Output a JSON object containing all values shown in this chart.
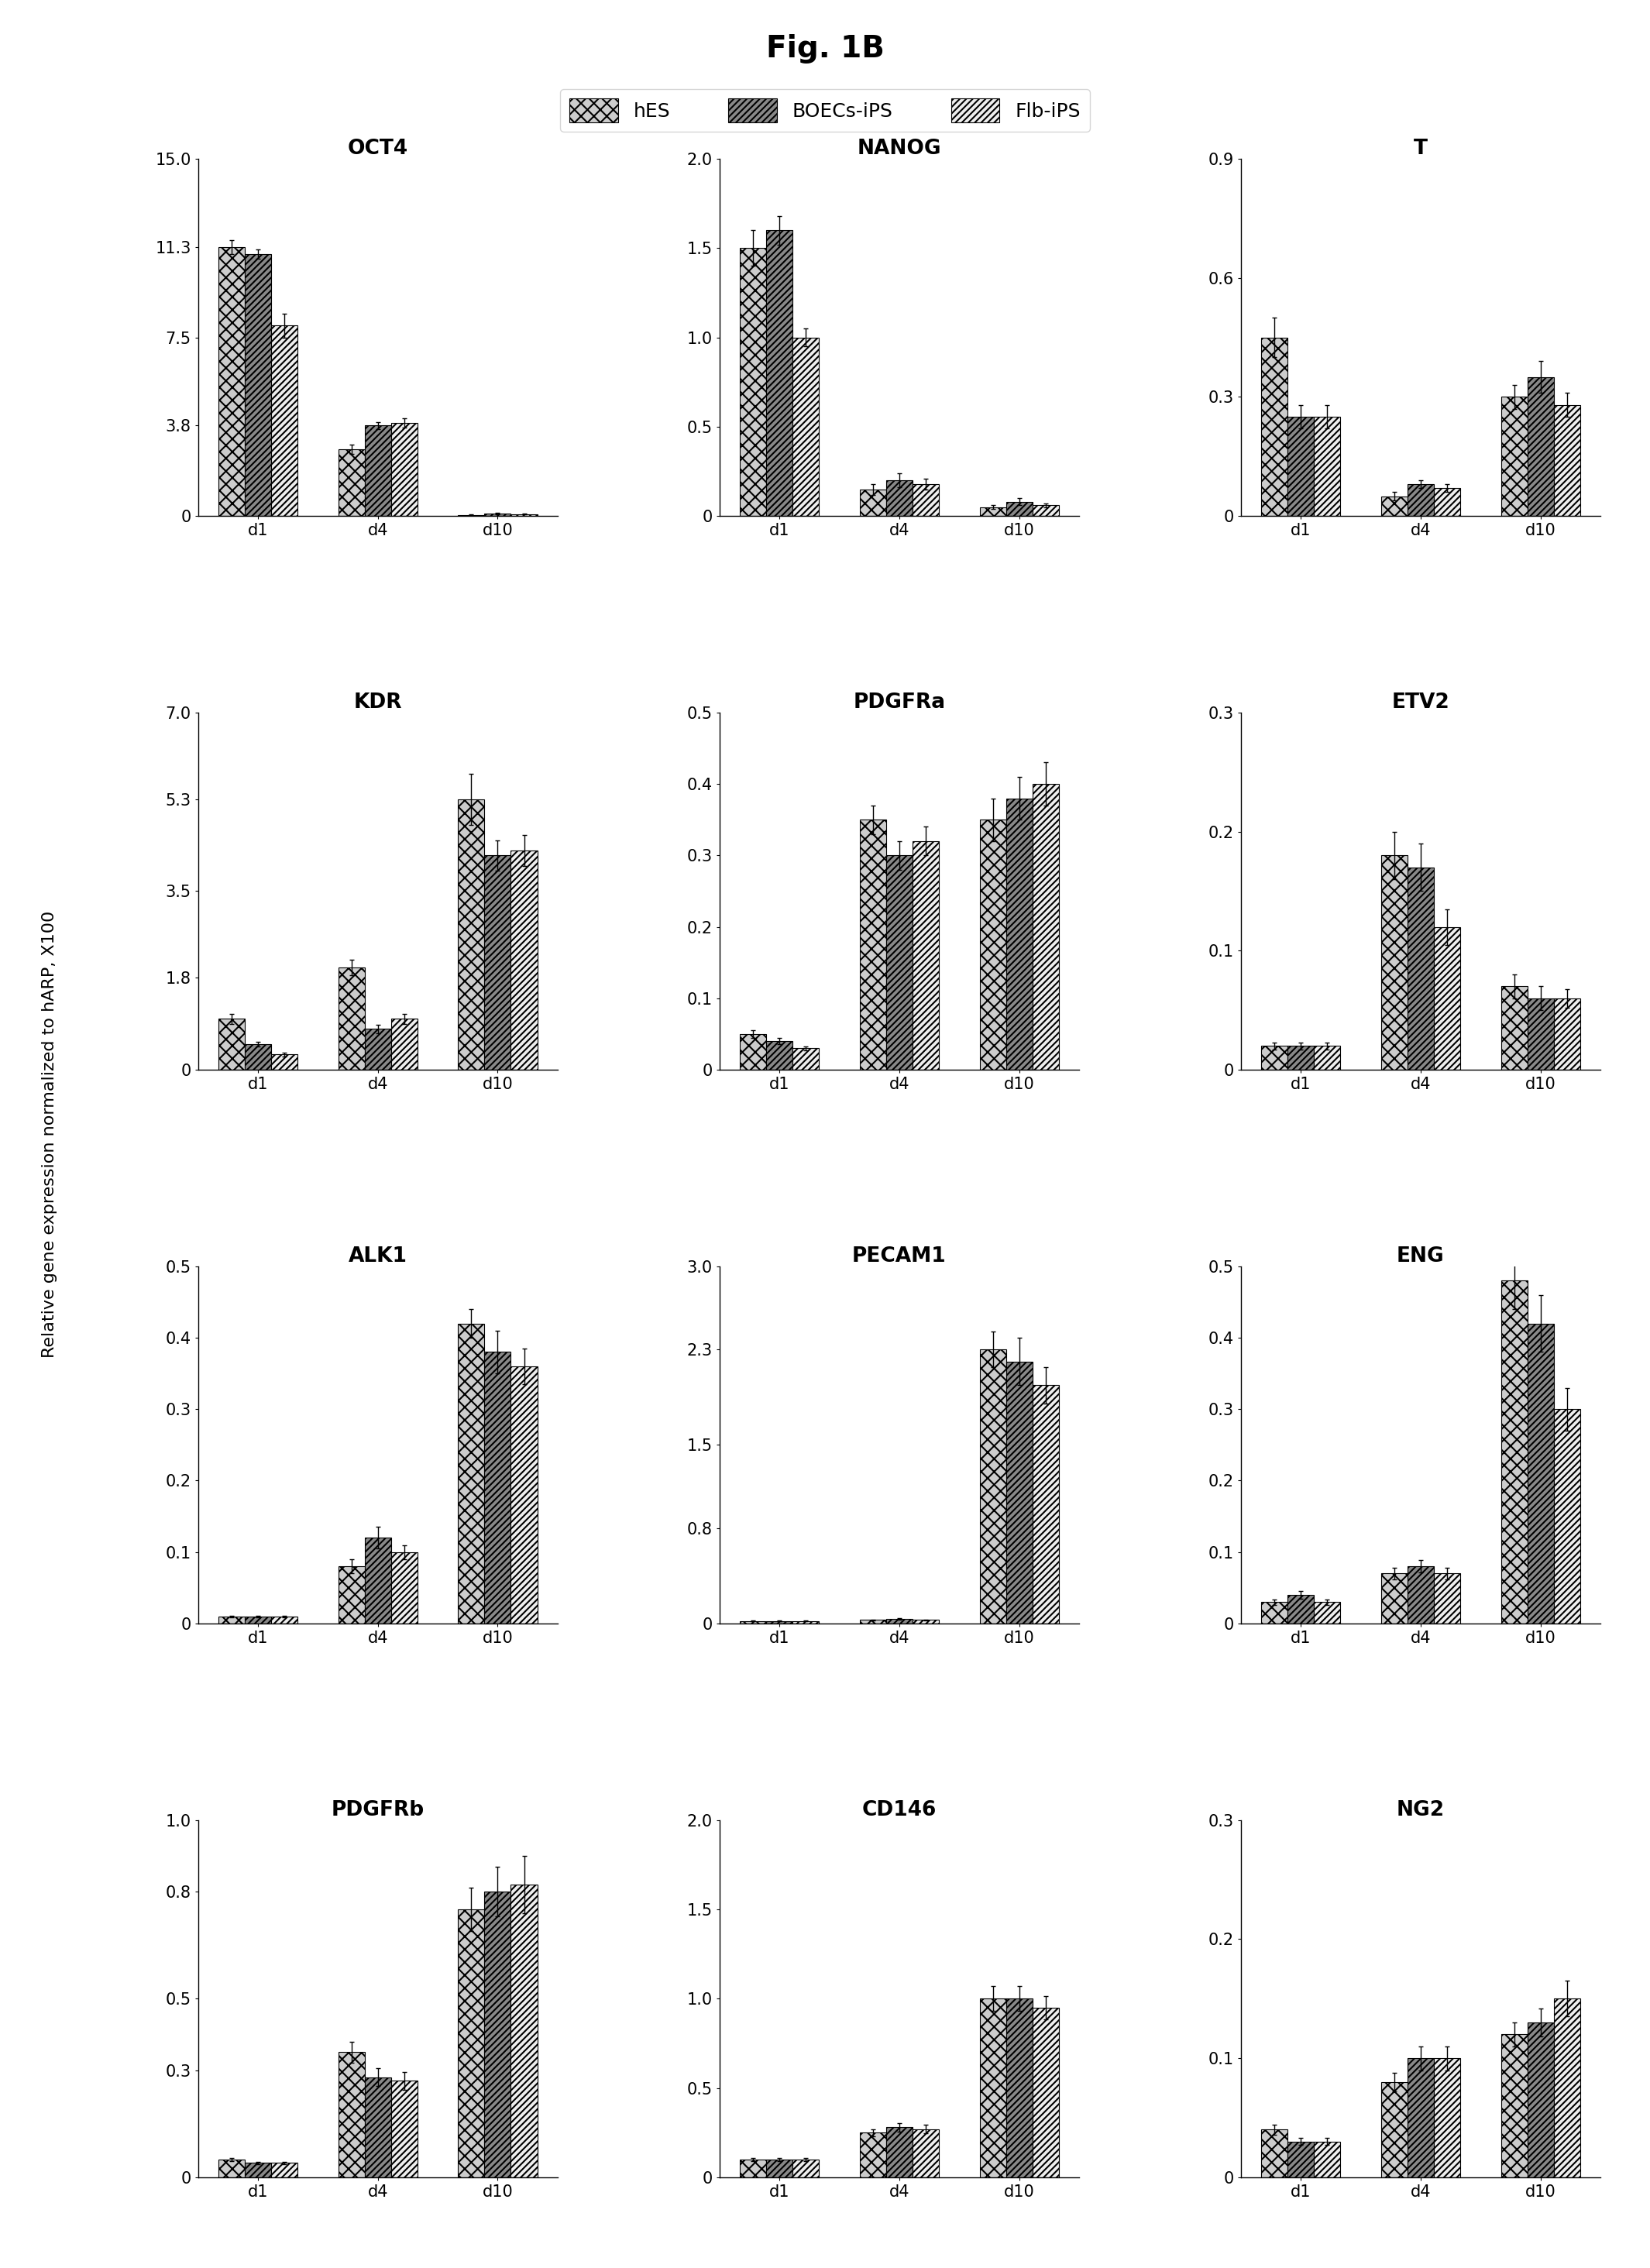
{
  "title": "Fig. 1B",
  "ylabel": "Relative gene expression normalized to hARP, X100",
  "legend_labels": [
    "hES",
    "BOECs-iPS",
    "Flb-iPS"
  ],
  "timepoints": [
    "d1",
    "d4",
    "d10"
  ],
  "subplots": [
    {
      "title": "OCT4",
      "ylim": [
        0,
        15.0
      ],
      "yticks": [
        0,
        3.8,
        7.5,
        11.3,
        15.0
      ],
      "values": [
        [
          11.3,
          2.8,
          0.05
        ],
        [
          11.0,
          3.8,
          0.1
        ],
        [
          8.0,
          3.9,
          0.08
        ]
      ],
      "errors": [
        [
          0.3,
          0.2,
          0.02
        ],
        [
          0.2,
          0.15,
          0.03
        ],
        [
          0.5,
          0.2,
          0.02
        ]
      ]
    },
    {
      "title": "NANOG",
      "ylim": [
        0,
        2.0
      ],
      "yticks": [
        0,
        0.5,
        1.0,
        1.5,
        2.0
      ],
      "values": [
        [
          1.5,
          0.15,
          0.05
        ],
        [
          1.6,
          0.2,
          0.08
        ],
        [
          1.0,
          0.18,
          0.06
        ]
      ],
      "errors": [
        [
          0.1,
          0.03,
          0.01
        ],
        [
          0.08,
          0.04,
          0.02
        ],
        [
          0.05,
          0.03,
          0.01
        ]
      ]
    },
    {
      "title": "T",
      "ylim": [
        0,
        0.9
      ],
      "yticks": [
        0,
        0.3,
        0.6,
        0.9
      ],
      "values": [
        [
          0.45,
          0.05,
          0.3
        ],
        [
          0.25,
          0.08,
          0.35
        ],
        [
          0.25,
          0.07,
          0.28
        ]
      ],
      "errors": [
        [
          0.05,
          0.01,
          0.03
        ],
        [
          0.03,
          0.01,
          0.04
        ],
        [
          0.03,
          0.01,
          0.03
        ]
      ]
    },
    {
      "title": "KDR",
      "ylim": [
        0,
        7.0
      ],
      "yticks": [
        0,
        1.8,
        3.5,
        5.3,
        7.0
      ],
      "values": [
        [
          1.0,
          2.0,
          5.3
        ],
        [
          0.5,
          0.8,
          4.2
        ],
        [
          0.3,
          1.0,
          4.3
        ]
      ],
      "errors": [
        [
          0.1,
          0.15,
          0.5
        ],
        [
          0.05,
          0.08,
          0.3
        ],
        [
          0.04,
          0.1,
          0.3
        ]
      ]
    },
    {
      "title": "PDGFRa",
      "ylim": [
        0,
        0.5
      ],
      "yticks": [
        0,
        0.1,
        0.2,
        0.3,
        0.4,
        0.5
      ],
      "values": [
        [
          0.05,
          0.35,
          0.35
        ],
        [
          0.04,
          0.3,
          0.38
        ],
        [
          0.03,
          0.32,
          0.4
        ]
      ],
      "errors": [
        [
          0.005,
          0.02,
          0.03
        ],
        [
          0.004,
          0.02,
          0.03
        ],
        [
          0.003,
          0.02,
          0.03
        ]
      ]
    },
    {
      "title": "ETV2",
      "ylim": [
        0,
        0.3
      ],
      "yticks": [
        0,
        0.1,
        0.2,
        0.3
      ],
      "values": [
        [
          0.02,
          0.18,
          0.07
        ],
        [
          0.02,
          0.17,
          0.06
        ],
        [
          0.02,
          0.12,
          0.06
        ]
      ],
      "errors": [
        [
          0.003,
          0.02,
          0.01
        ],
        [
          0.003,
          0.02,
          0.01
        ],
        [
          0.003,
          0.015,
          0.008
        ]
      ]
    },
    {
      "title": "ALK1",
      "ylim": [
        0,
        0.5
      ],
      "yticks": [
        0,
        0.1,
        0.2,
        0.3,
        0.4,
        0.5
      ],
      "values": [
        [
          0.01,
          0.08,
          0.42
        ],
        [
          0.01,
          0.12,
          0.38
        ],
        [
          0.01,
          0.1,
          0.36
        ]
      ],
      "errors": [
        [
          0.001,
          0.01,
          0.02
        ],
        [
          0.001,
          0.015,
          0.03
        ],
        [
          0.001,
          0.01,
          0.025
        ]
      ]
    },
    {
      "title": "PECAM1",
      "ylim": [
        0,
        3.0
      ],
      "yticks": [
        0,
        0.8,
        1.5,
        2.3,
        3.0
      ],
      "values": [
        [
          0.02,
          0.03,
          2.3
        ],
        [
          0.02,
          0.04,
          2.2
        ],
        [
          0.02,
          0.03,
          2.0
        ]
      ],
      "errors": [
        [
          0.003,
          0.004,
          0.15
        ],
        [
          0.003,
          0.005,
          0.2
        ],
        [
          0.003,
          0.004,
          0.15
        ]
      ]
    },
    {
      "title": "ENG",
      "ylim": [
        0,
        0.5
      ],
      "yticks": [
        0,
        0.1,
        0.2,
        0.3,
        0.4,
        0.5
      ],
      "values": [
        [
          0.03,
          0.07,
          0.48
        ],
        [
          0.04,
          0.08,
          0.42
        ],
        [
          0.03,
          0.07,
          0.3
        ]
      ],
      "errors": [
        [
          0.004,
          0.008,
          0.04
        ],
        [
          0.005,
          0.009,
          0.04
        ],
        [
          0.004,
          0.008,
          0.03
        ]
      ]
    },
    {
      "title": "PDGFRb",
      "ylim": [
        0,
        1.0
      ],
      "yticks": [
        0,
        0.3,
        0.5,
        0.8,
        1.0
      ],
      "values": [
        [
          0.05,
          0.35,
          0.75
        ],
        [
          0.04,
          0.28,
          0.8
        ],
        [
          0.04,
          0.27,
          0.82
        ]
      ],
      "errors": [
        [
          0.005,
          0.03,
          0.06
        ],
        [
          0.004,
          0.025,
          0.07
        ],
        [
          0.004,
          0.025,
          0.08
        ]
      ]
    },
    {
      "title": "CD146",
      "ylim": [
        0,
        2.0
      ],
      "yticks": [
        0,
        0.5,
        1.0,
        1.5,
        2.0
      ],
      "values": [
        [
          0.1,
          0.25,
          1.0
        ],
        [
          0.1,
          0.28,
          1.0
        ],
        [
          0.1,
          0.27,
          0.95
        ]
      ],
      "errors": [
        [
          0.01,
          0.02,
          0.07
        ],
        [
          0.01,
          0.025,
          0.07
        ],
        [
          0.01,
          0.025,
          0.065
        ]
      ]
    },
    {
      "title": "NG2",
      "ylim": [
        0,
        0.3
      ],
      "yticks": [
        0,
        0.1,
        0.2,
        0.3
      ],
      "values": [
        [
          0.04,
          0.08,
          0.12
        ],
        [
          0.03,
          0.1,
          0.13
        ],
        [
          0.03,
          0.1,
          0.15
        ]
      ],
      "errors": [
        [
          0.004,
          0.008,
          0.01
        ],
        [
          0.003,
          0.01,
          0.012
        ],
        [
          0.003,
          0.01,
          0.015
        ]
      ]
    }
  ],
  "hatch_patterns": [
    "xx",
    "////",
    "////"
  ],
  "bar_colors": [
    "#d0d0d0",
    "#b8b8b8",
    "#e8e8e8"
  ],
  "background_color": "#ffffff",
  "title_fontsize": 28,
  "label_fontsize": 16,
  "tick_fontsize": 15,
  "legend_fontsize": 18,
  "subplot_title_fontsize": 19
}
